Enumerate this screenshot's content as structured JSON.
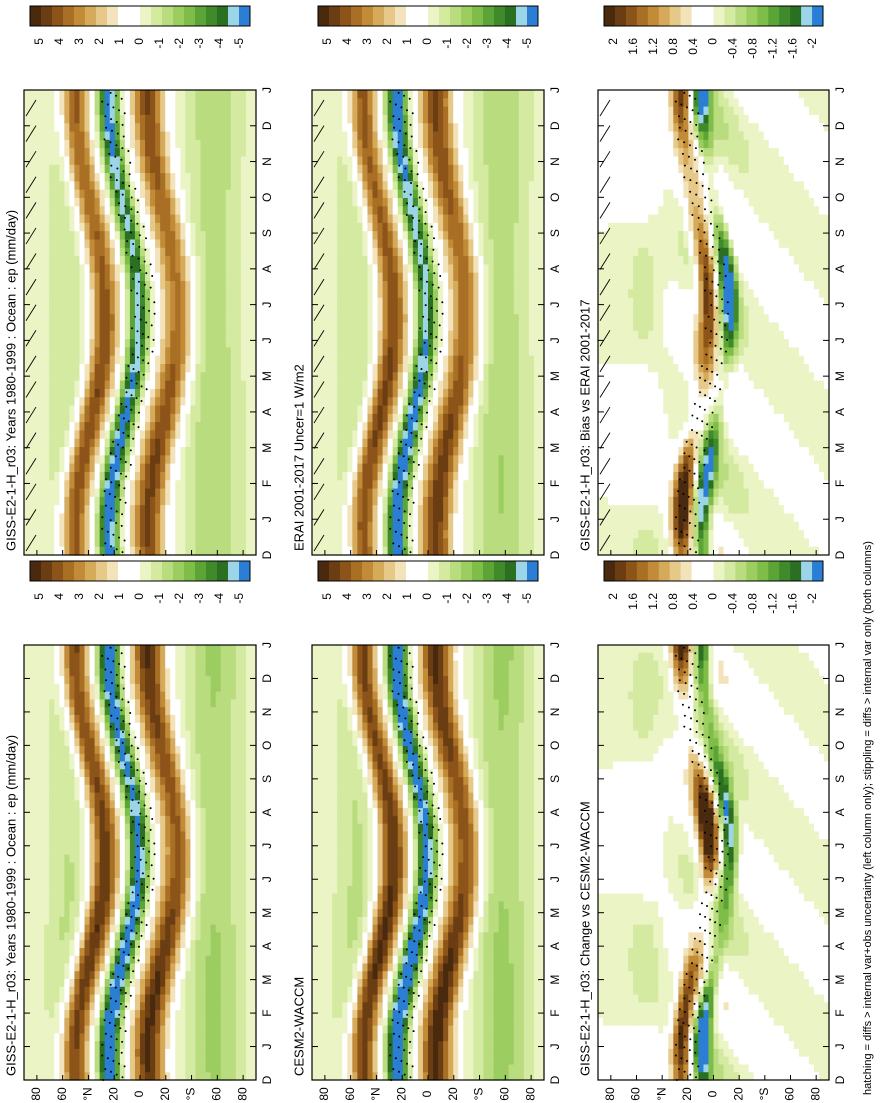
{
  "footnote": "hatching = diffs > internal var+obs uncertainty (left column only); stippling = diffs > internal var only (both columns)",
  "chart_data": [
    {
      "type": "heatmap",
      "title": "GISS-E2-1-H_r03: Years 1980-1999 : Ocean : ep (mm/day)",
      "x": [
        "D",
        "J",
        "F",
        "M",
        "A",
        "M",
        "J",
        "J",
        "A",
        "S",
        "O",
        "N",
        "D",
        "J"
      ],
      "y_ticks": [
        "80",
        "60",
        "°N",
        "20",
        "0",
        "20",
        "°S",
        "60",
        "80"
      ],
      "colorbar": {
        "ticks": [
          "5",
          "4",
          "3",
          "2",
          "1",
          "0",
          "-1",
          "-2",
          "-3",
          "-4",
          "-5"
        ],
        "range": [
          -5.5,
          5.5
        ]
      },
      "hatched": true,
      "stippled": true
    },
    {
      "type": "heatmap",
      "title": "ERAI 2001-2017 Uncer=1 W/m2",
      "x": [
        "D",
        "J",
        "F",
        "M",
        "A",
        "M",
        "J",
        "J",
        "A",
        "S",
        "O",
        "N",
        "D",
        "J"
      ],
      "y_ticks": [
        "80",
        "60",
        "°N",
        "20",
        "0",
        "20",
        "°S",
        "60",
        "80"
      ],
      "colorbar": {
        "ticks": [
          "5",
          "4",
          "3",
          "2",
          "1",
          "0",
          "-1",
          "-2",
          "-3",
          "-4",
          "-5"
        ],
        "range": [
          -5.5,
          5.5
        ]
      },
      "hatched": true,
      "stippled": true
    },
    {
      "type": "heatmap",
      "title": "GISS-E2-1-H_r03: Bias vs ERAI 2001-2017",
      "x": [
        "D",
        "J",
        "F",
        "M",
        "A",
        "M",
        "J",
        "J",
        "A",
        "S",
        "O",
        "N",
        "D",
        "J"
      ],
      "y_ticks": [
        "80",
        "60",
        "°N",
        "20",
        "0",
        "20",
        "°S",
        "60",
        "80"
      ],
      "colorbar": {
        "ticks": [
          "2",
          "1.6",
          "1.2",
          "0.8",
          "0.4",
          "0",
          "-0.4",
          "-0.8",
          "-1.2",
          "-1.6",
          "-2"
        ],
        "range": [
          -2.2,
          2.2
        ]
      },
      "hatched": true,
      "stippled": true
    },
    {
      "type": "heatmap",
      "title": "GISS-E2-1-H_r03: Years 1980-1999 : Ocean : ep (mm/day)",
      "x": [
        "D",
        "J",
        "F",
        "M",
        "A",
        "M",
        "J",
        "J",
        "A",
        "S",
        "O",
        "N",
        "D",
        "J"
      ],
      "y_ticks": [
        "80",
        "60",
        "°N",
        "20",
        "0",
        "20",
        "°S",
        "60",
        "80"
      ],
      "colorbar": {
        "ticks": [
          "5",
          "4",
          "3",
          "2",
          "1",
          "0",
          "-1",
          "-2",
          "-3",
          "-4",
          "-5"
        ],
        "range": [
          -5.5,
          5.5
        ]
      },
      "hatched": false,
      "stippled": true
    },
    {
      "type": "heatmap",
      "title": "CESM2-WACCM",
      "x": [
        "D",
        "J",
        "F",
        "M",
        "A",
        "M",
        "J",
        "J",
        "A",
        "S",
        "O",
        "N",
        "D",
        "J"
      ],
      "y_ticks": [
        "80",
        "60",
        "°N",
        "20",
        "0",
        "20",
        "°S",
        "60",
        "80"
      ],
      "colorbar": {
        "ticks": [
          "5",
          "4",
          "3",
          "2",
          "1",
          "0",
          "-1",
          "-2",
          "-3",
          "-4",
          "-5"
        ],
        "range": [
          -5.5,
          5.5
        ]
      },
      "hatched": false,
      "stippled": true
    },
    {
      "type": "heatmap",
      "title": "GISS-E2-1-H_r03: Change vs CESM2-WACCM",
      "x": [
        "D",
        "J",
        "F",
        "M",
        "A",
        "M",
        "J",
        "J",
        "A",
        "S",
        "O",
        "N",
        "D",
        "J"
      ],
      "y_ticks": [
        "80",
        "60",
        "°N",
        "20",
        "0",
        "20",
        "°S",
        "60",
        "80"
      ],
      "colorbar": {
        "ticks": [
          "2",
          "1.6",
          "1.2",
          "0.8",
          "0.4",
          "0",
          "-0.4",
          "-0.8",
          "-1.2",
          "-1.6",
          "-2"
        ],
        "range": [
          -2.2,
          2.2
        ]
      },
      "hatched": false,
      "stippled": true
    }
  ]
}
